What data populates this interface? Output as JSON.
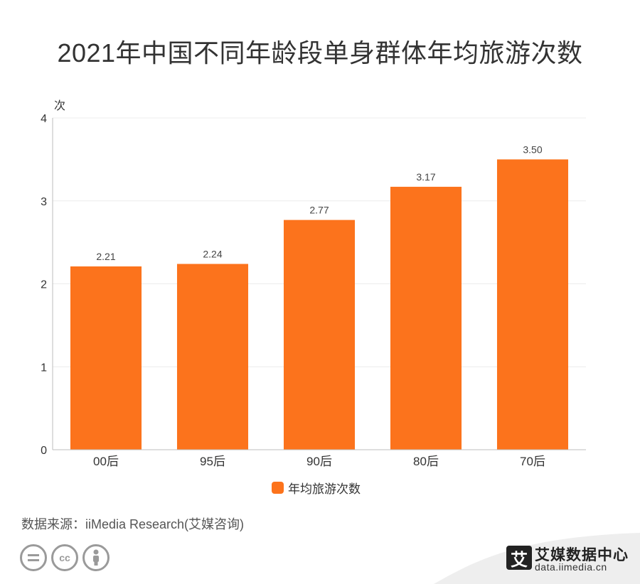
{
  "chart_data": {
    "type": "bar",
    "title": "2021年中国不同年龄段单身群体年均旅游次数",
    "ylabel": "次",
    "xlabel": "",
    "ylim": [
      0,
      4
    ],
    "yticks": [
      0,
      1,
      2,
      3,
      4
    ],
    "categories": [
      "00后",
      "95后",
      "90后",
      "80后",
      "70后"
    ],
    "series": [
      {
        "name": "年均旅游次数",
        "values": [
          2.21,
          2.24,
          2.77,
          3.17,
          3.5
        ],
        "labels": [
          "2.21",
          "2.24",
          "2.77",
          "3.17",
          "3.50"
        ]
      }
    ],
    "color": "#fc731c",
    "grid": true,
    "legend": "bottom-center"
  },
  "source": "数据来源：iiMedia Research(艾媒咨询)",
  "license_icons": [
    "equals-icon",
    "cc-icon",
    "person-icon"
  ],
  "brand": {
    "logo_char": "艾",
    "name": "艾媒数据中心",
    "url": "data.iimedia.cn"
  }
}
